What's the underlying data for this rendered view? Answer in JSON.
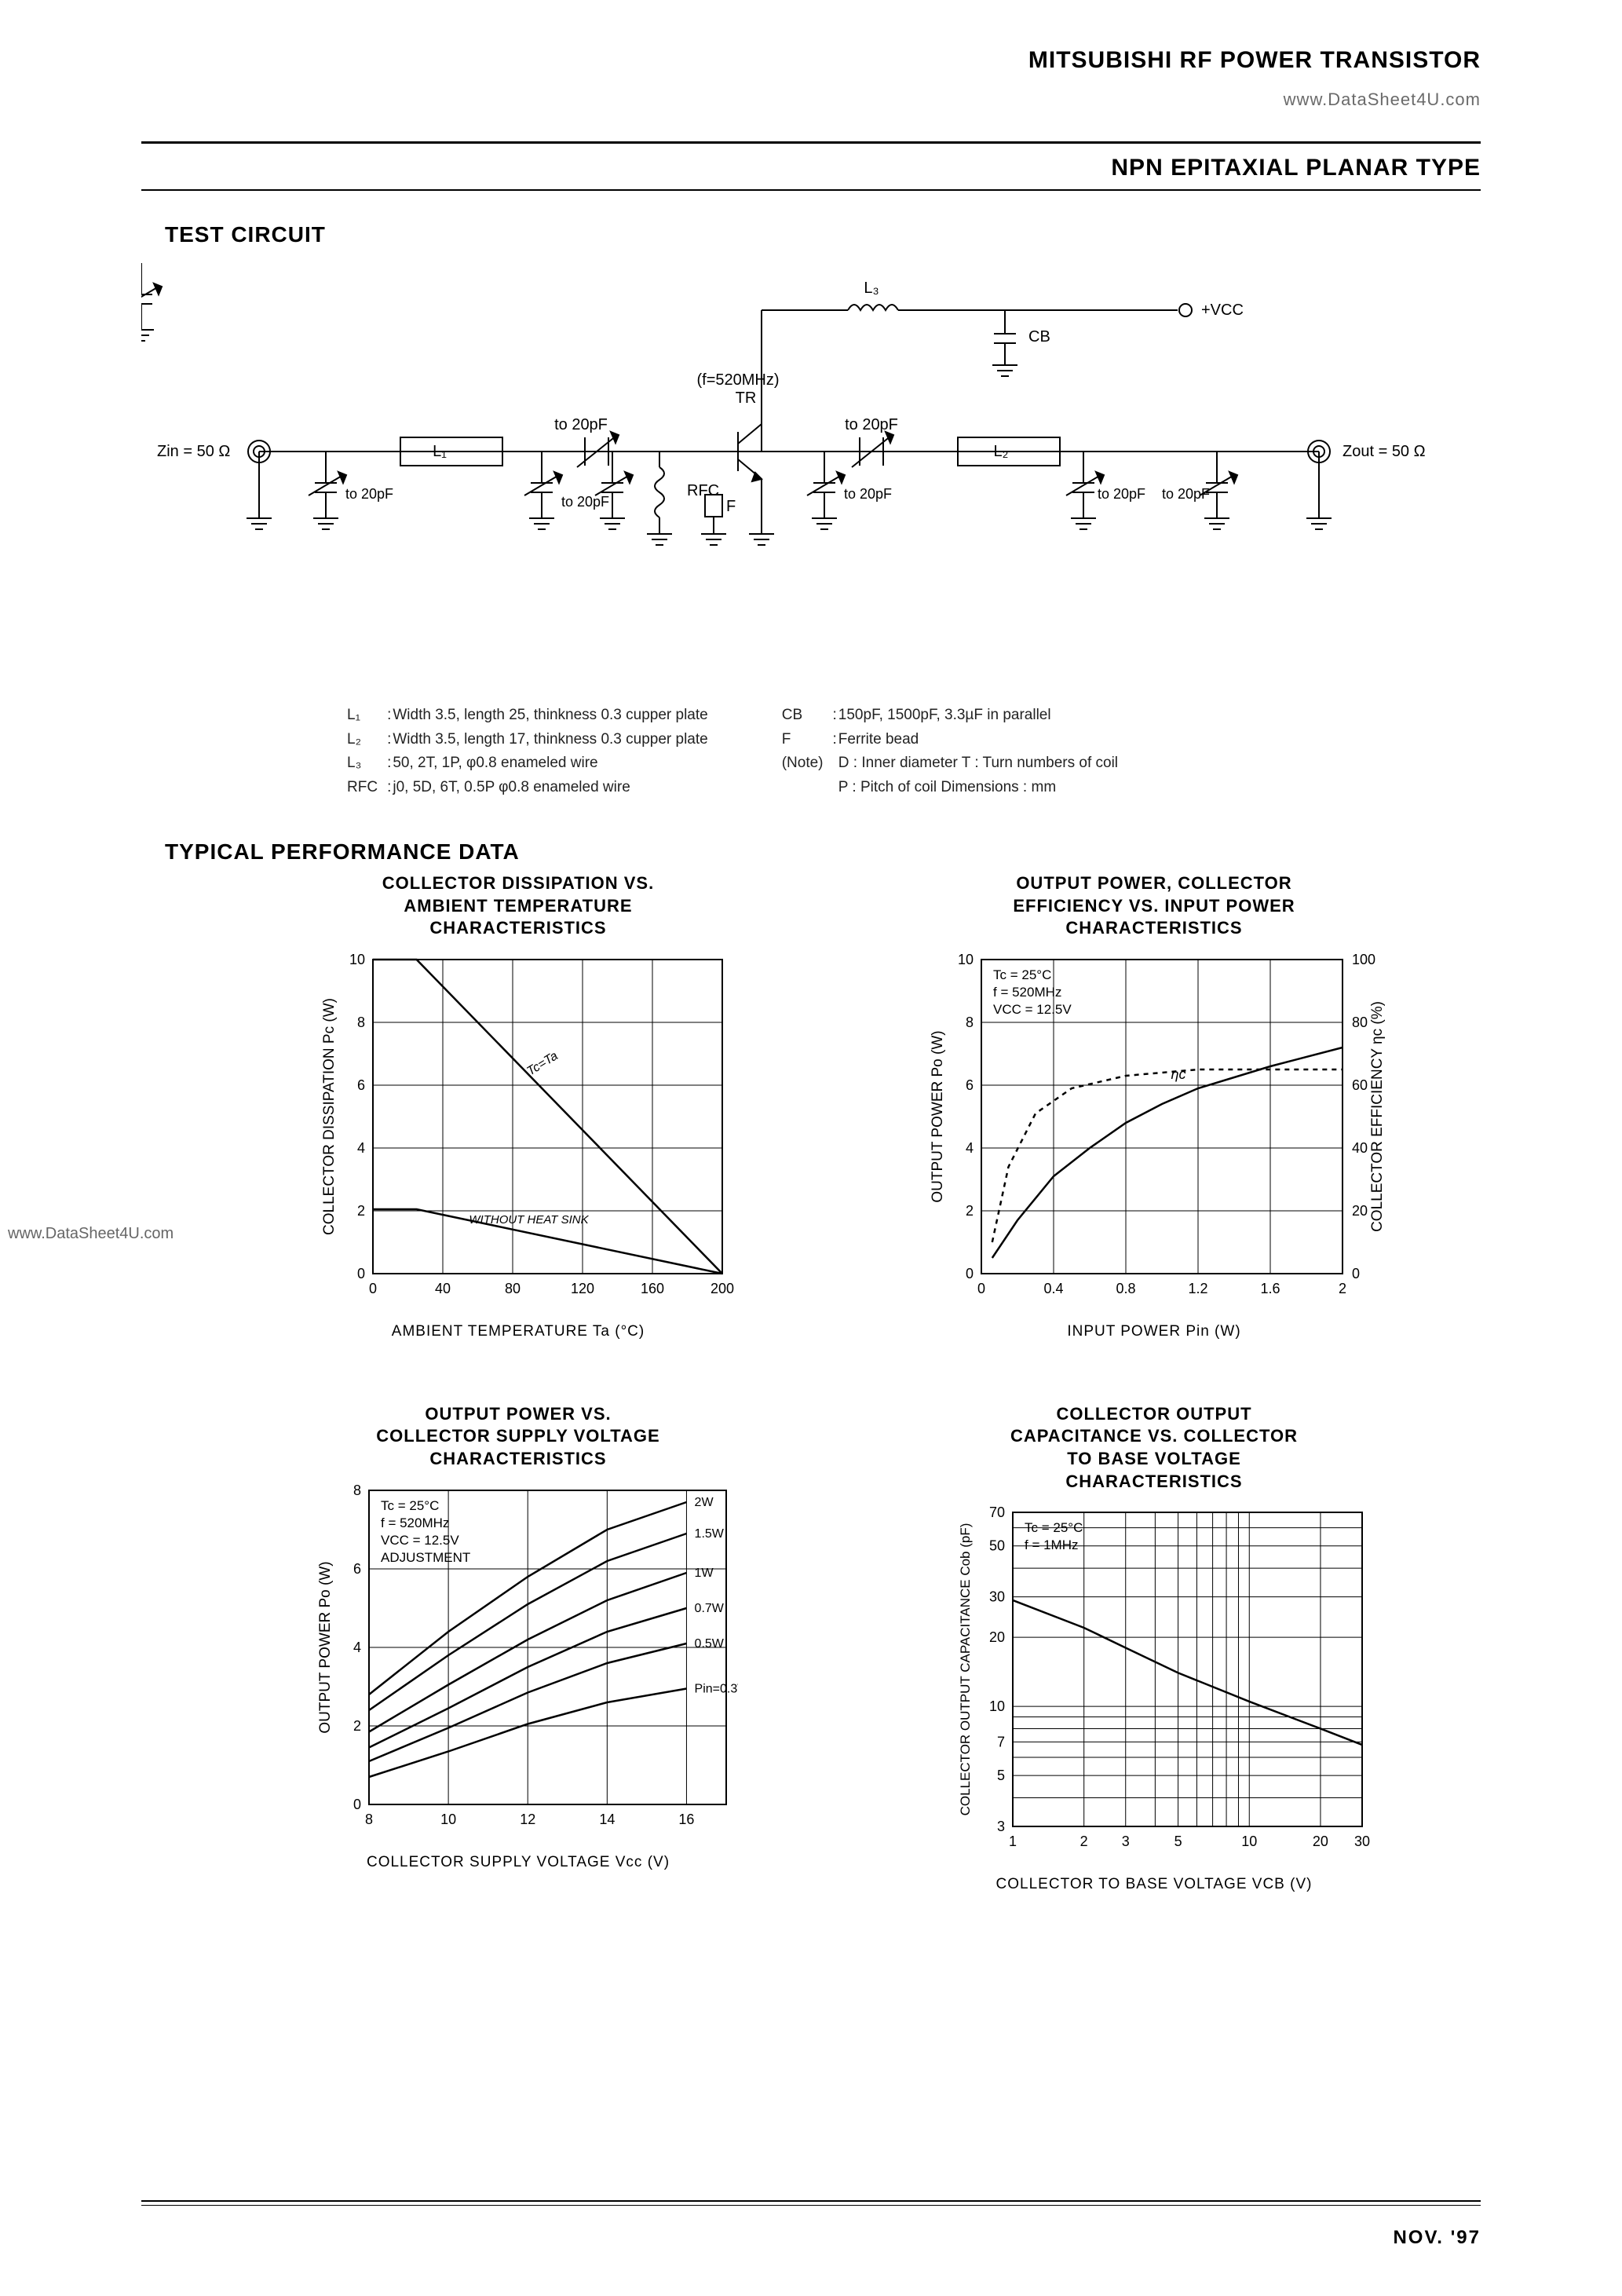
{
  "header": {
    "brand_line": "MITSUBISHI RF POWER TRANSISTOR",
    "watermark_right": "www.DataSheet4U.com",
    "subtitle": "NPN EPITAXIAL PLANAR TYPE",
    "watermark_left": "www.DataSheet4U.com",
    "date": "NOV. '97"
  },
  "test_circuit": {
    "title": "TEST CIRCUIT",
    "labels": {
      "zin": "Zin = 50 Ω",
      "zout": "Zout = 50 Ω",
      "l1": "L₁",
      "l2": "L₂",
      "l3": "L₃",
      "cb": "CB",
      "vcc": "+VCC",
      "freq": "(f=520MHz)",
      "tr": "TR",
      "rfc": "RFC",
      "f": "F",
      "cap_20pf": "to 20pF"
    },
    "notes_left": [
      [
        "L₁",
        ":",
        "Width 3.5, length 25, thinkness 0.3 cupper plate"
      ],
      [
        "L₂",
        ":",
        "Width 3.5, length 17, thinkness 0.3 cupper plate"
      ],
      [
        "L₃",
        ":",
        "50, 2T, 1P, φ0.8 enameled wire"
      ],
      [
        "RFC",
        ":",
        "j0, 5D, 6T, 0.5P φ0.8 enameled wire"
      ]
    ],
    "notes_right": [
      [
        "CB",
        ":",
        "150pF, 1500pF, 3.3µF in parallel"
      ],
      [
        "F",
        ":",
        "Ferrite bead"
      ],
      [
        "(Note)",
        "",
        "D : Inner diameter   T : Turn numbers of coil"
      ],
      [
        "",
        "",
        "P : Pitch of coil      Dimensions : mm"
      ]
    ]
  },
  "perf_title": "TYPICAL PERFORMANCE DATA",
  "charts": {
    "chart1": {
      "title": "COLLECTOR DISSIPATION VS.\nAMBIENT TEMPERATURE\nCHARACTERISTICS",
      "xlabel": "AMBIENT TEMPERATURE  Ta (°C)",
      "ylabel": "COLLECTOR DISSIPATION  Pc (W)",
      "x_ticks": [
        0,
        40,
        80,
        120,
        160,
        200
      ],
      "y_ticks": [
        0,
        2,
        4,
        6,
        8,
        10
      ],
      "xlim": [
        0,
        200
      ],
      "ylim": [
        0,
        10
      ],
      "annot": [
        "Tc=Ta",
        "WITHOUT HEAT SINK"
      ],
      "series": [
        {
          "name": "with_sink",
          "points": [
            [
              0,
              10
            ],
            [
              25,
              10
            ],
            [
              200,
              0
            ]
          ]
        },
        {
          "name": "without_sink",
          "points": [
            [
              0,
              2.05
            ],
            [
              25,
              2.05
            ],
            [
              200,
              0
            ]
          ]
        }
      ],
      "line_color": "#000000",
      "grid_color": "#000000",
      "bg": "#ffffff"
    },
    "chart2": {
      "title": "OUTPUT POWER, COLLECTOR\nEFFICIENCY VS. INPUT POWER\nCHARACTERISTICS",
      "xlabel": "INPUT POWER  Pin (W)",
      "ylabel_left": "OUTPUT POWER  Po (W)",
      "ylabel_right": "COLLECTOR EFFICIENCY  ηc (%)",
      "x_ticks": [
        0,
        0.4,
        0.8,
        1.2,
        1.6,
        2.0
      ],
      "y_ticks_left": [
        0,
        2,
        4,
        6,
        8,
        10
      ],
      "y_ticks_right": [
        0,
        20,
        40,
        60,
        80,
        100
      ],
      "xlim": [
        0,
        2.0
      ],
      "ylim": [
        0,
        10
      ],
      "cond": [
        "Tc = 25°C",
        "f = 520MHz",
        "VCC = 12.5V"
      ],
      "eta_label": "ηc",
      "series": [
        {
          "name": "Po_solid",
          "dash": "none",
          "points": [
            [
              0.06,
              0.5
            ],
            [
              0.2,
              1.7
            ],
            [
              0.4,
              3.1
            ],
            [
              0.6,
              4.0
            ],
            [
              0.8,
              4.8
            ],
            [
              1.0,
              5.4
            ],
            [
              1.2,
              5.9
            ],
            [
              1.6,
              6.6
            ],
            [
              2.0,
              7.2
            ]
          ]
        },
        {
          "name": "eta_dash",
          "dash": "6,6",
          "points": [
            [
              0.06,
              1.0
            ],
            [
              0.15,
              3.4
            ],
            [
              0.3,
              5.1
            ],
            [
              0.5,
              5.9
            ],
            [
              0.8,
              6.3
            ],
            [
              1.2,
              6.5
            ],
            [
              1.6,
              6.5
            ],
            [
              2.0,
              6.5
            ]
          ]
        }
      ],
      "line_color": "#000000",
      "bg": "#ffffff"
    },
    "chart3": {
      "title": "OUTPUT POWER VS.\nCOLLECTOR SUPPLY VOLTAGE\nCHARACTERISTICS",
      "xlabel": "COLLECTOR SUPPLY VOLTAGE  Vcc (V)",
      "ylabel": "OUTPUT POWER  Po (W)",
      "x_ticks": [
        8,
        10,
        12,
        14,
        16
      ],
      "y_ticks": [
        0,
        2,
        4,
        6,
        8
      ],
      "xlim": [
        8,
        17
      ],
      "ylim": [
        0,
        8
      ],
      "cond": [
        "Tc = 25°C",
        "f = 520MHz",
        "VCC = 12.5V",
        "ADJUSTMENT"
      ],
      "right_labels": [
        {
          "t": "2W",
          "y": 7.7
        },
        {
          "t": "1.5W",
          "y": 6.9
        },
        {
          "t": "1W",
          "y": 5.9
        },
        {
          "t": "0.7W",
          "y": 5.0
        },
        {
          "t": "0.5W",
          "y": 4.1
        },
        {
          "t": "Pin=0.3W",
          "y": 2.95
        }
      ],
      "series": [
        {
          "points": [
            [
              8,
              2.8
            ],
            [
              10,
              4.4
            ],
            [
              12,
              5.8
            ],
            [
              14,
              7.0
            ],
            [
              16,
              7.7
            ]
          ]
        },
        {
          "points": [
            [
              8,
              2.4
            ],
            [
              10,
              3.8
            ],
            [
              12,
              5.1
            ],
            [
              14,
              6.2
            ],
            [
              16,
              6.9
            ]
          ]
        },
        {
          "points": [
            [
              8,
              1.85
            ],
            [
              10,
              3.05
            ],
            [
              12,
              4.2
            ],
            [
              14,
              5.2
            ],
            [
              16,
              5.9
            ]
          ]
        },
        {
          "points": [
            [
              8,
              1.45
            ],
            [
              10,
              2.45
            ],
            [
              12,
              3.5
            ],
            [
              14,
              4.4
            ],
            [
              16,
              5.0
            ]
          ]
        },
        {
          "points": [
            [
              8,
              1.1
            ],
            [
              10,
              1.95
            ],
            [
              12,
              2.85
            ],
            [
              14,
              3.6
            ],
            [
              16,
              4.1
            ]
          ]
        },
        {
          "points": [
            [
              8,
              0.7
            ],
            [
              10,
              1.35
            ],
            [
              12,
              2.05
            ],
            [
              14,
              2.6
            ],
            [
              16,
              2.95
            ]
          ]
        }
      ],
      "line_color": "#000000",
      "bg": "#ffffff"
    },
    "chart4": {
      "title": "COLLECTOR OUTPUT\nCAPACITANCE VS. COLLECTOR\nTO BASE VOLTAGE\nCHARACTERISTICS",
      "xlabel": "COLLECTOR TO BASE VOLTAGE  VCB (V)",
      "ylabel": "COLLECTOR OUTPUT CAPACITANCE  Cob (pF)",
      "x_ticks": [
        1,
        2,
        3,
        5,
        10,
        20,
        30
      ],
      "y_ticks": [
        3,
        5,
        7,
        10,
        20,
        30,
        50,
        70
      ],
      "xlim_log": [
        1,
        30
      ],
      "ylim_log": [
        3,
        70
      ],
      "cond": [
        "Tc = 25°C",
        "f = 1MHz"
      ],
      "series": [
        {
          "points": [
            [
              1,
              29
            ],
            [
              2,
              22
            ],
            [
              3,
              18
            ],
            [
              5,
              14
            ],
            [
              10,
              10.5
            ],
            [
              20,
              8
            ],
            [
              30,
              6.8
            ]
          ]
        }
      ],
      "line_color": "#000000",
      "bg": "#ffffff"
    }
  },
  "colors": {
    "text": "#000000",
    "bg": "#ffffff",
    "grid": "#000000",
    "rule": "#000000"
  }
}
